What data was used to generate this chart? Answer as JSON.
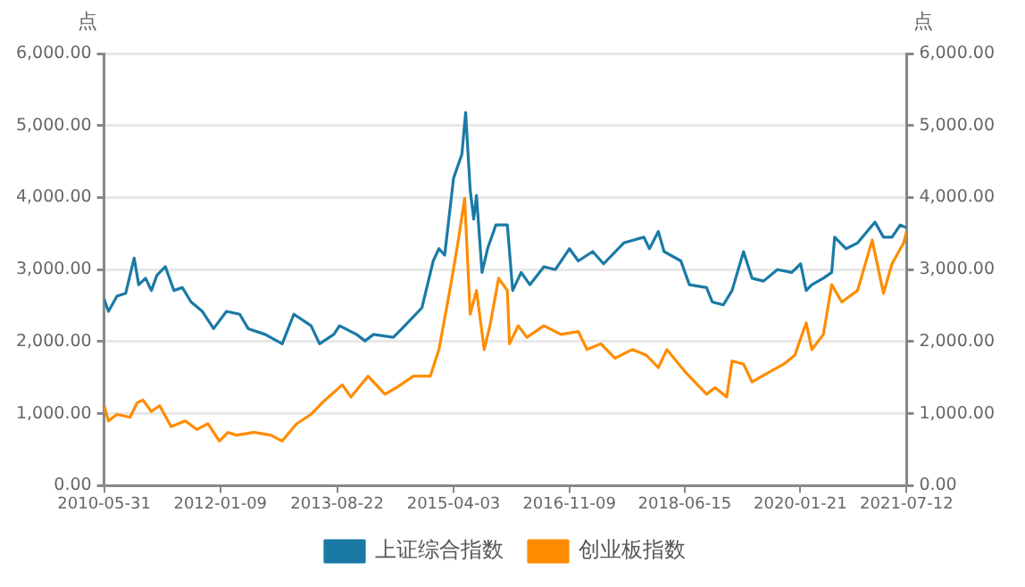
{
  "chart_data": {
    "type": "line",
    "ylabel": "点",
    "y2label": "点",
    "xlim": [
      "2010-05-31",
      "2021-07-12"
    ],
    "xticks": [
      "2010-05-31",
      "2012-01-09",
      "2013-08-22",
      "2015-04-03",
      "2016-11-09",
      "2018-06-15",
      "2020-01-21",
      "2021-07-12"
    ],
    "ylim": [
      0,
      6000
    ],
    "yticks": [
      {
        "value": 0,
        "label": "0.00"
      },
      {
        "value": 1000,
        "label": "1,000.00"
      },
      {
        "value": 2000,
        "label": "2,000.00"
      },
      {
        "value": 3000,
        "label": "3,000.00"
      },
      {
        "value": 4000,
        "label": "4,000.00"
      },
      {
        "value": 5000,
        "label": "5,000.00"
      },
      {
        "value": 6000,
        "label": "6,000.00"
      }
    ],
    "y2lim": [
      0,
      6000
    ],
    "y2ticks": [
      {
        "value": 0,
        "label": "0.00"
      },
      {
        "value": 1000,
        "label": "1,000.00"
      },
      {
        "value": 2000,
        "label": "2,000.00"
      },
      {
        "value": 3000,
        "label": "3,000.00"
      },
      {
        "value": 4000,
        "label": "4,000.00"
      },
      {
        "value": 5000,
        "label": "5,000.00"
      },
      {
        "value": 6000,
        "label": "6,000.00"
      }
    ],
    "grid": "y",
    "legend": "bottom",
    "marker": "none",
    "line_style": "solid",
    "series": [
      {
        "name": "上证综合指数",
        "color": "#1a7aa6",
        "x": [
          "2010-05-31",
          "2010-06-22",
          "2010-08-04",
          "2010-09-17",
          "2010-10-16",
          "2010-10-30",
          "2010-11-22",
          "2010-12-27",
          "2011-01-25",
          "2011-02-22",
          "2011-04-06",
          "2011-05-19",
          "2011-07-01",
          "2011-08-14",
          "2011-10-10",
          "2011-12-06",
          "2012-02-09",
          "2012-04-16",
          "2012-05-29",
          "2012-08-23",
          "2012-11-17",
          "2013-01-15",
          "2013-04-12",
          "2013-05-25",
          "2013-08-05",
          "2013-09-03",
          "2013-11-28",
          "2014-01-10",
          "2014-02-22",
          "2014-06-02",
          "2014-07-16",
          "2014-10-25",
          "2014-12-21",
          "2015-01-19",
          "2015-02-17",
          "2015-04-03",
          "2015-05-15",
          "2015-06-03",
          "2015-06-26",
          "2015-07-14",
          "2015-07-28",
          "2015-08-25",
          "2015-09-22",
          "2015-11-03",
          "2015-12-31",
          "2016-01-27",
          "2016-03-10",
          "2016-04-23",
          "2016-07-03",
          "2016-08-30",
          "2016-11-09",
          "2016-12-24",
          "2017-03-07",
          "2017-05-01",
          "2017-08-11",
          "2017-11-21",
          "2017-12-19",
          "2018-02-02",
          "2018-03-03",
          "2018-05-27",
          "2018-07-09",
          "2018-10-04",
          "2018-11-02",
          "2018-12-28",
          "2019-02-10",
          "2019-04-09",
          "2019-05-22",
          "2019-07-19",
          "2019-09-27",
          "2019-12-09",
          "2020-01-23",
          "2020-02-20",
          "2020-03-20",
          "2020-05-17",
          "2020-06-28",
          "2020-07-13",
          "2020-09-09",
          "2020-11-06",
          "2021-02-02",
          "2021-03-17",
          "2021-04-29",
          "2021-06-10",
          "2021-07-12"
        ],
        "values": [
          2590,
          2420,
          2630,
          2670,
          3000,
          3160,
          2790,
          2880,
          2710,
          2920,
          3040,
          2710,
          2750,
          2550,
          2420,
          2180,
          2420,
          2380,
          2180,
          2100,
          1970,
          2380,
          2220,
          1970,
          2100,
          2220,
          2100,
          2010,
          2100,
          2060,
          2180,
          2470,
          3120,
          3290,
          3200,
          4270,
          4600,
          5180,
          4110,
          3700,
          4030,
          2960,
          3290,
          3620,
          3620,
          2710,
          2960,
          2790,
          3040,
          3000,
          3290,
          3120,
          3250,
          3080,
          3370,
          3450,
          3290,
          3530,
          3250,
          3120,
          2790,
          2750,
          2550,
          2510,
          2710,
          3250,
          2880,
          2840,
          3000,
          2960,
          3080,
          2710,
          2790,
          2880,
          2960,
          3450,
          3290,
          3370,
          3660,
          3450,
          3450,
          3620,
          3580
        ]
      },
      {
        "name": "创业板指数",
        "color": "#ff8c00",
        "x": [
          "2010-05-31",
          "2010-06-22",
          "2010-08-04",
          "2010-10-09",
          "2010-11-14",
          "2010-12-13",
          "2011-01-25",
          "2011-03-08",
          "2011-05-05",
          "2011-07-16",
          "2011-09-12",
          "2011-11-07",
          "2012-01-04",
          "2012-02-17",
          "2012-04-01",
          "2012-06-27",
          "2012-09-21",
          "2012-11-17",
          "2013-01-29",
          "2013-04-12",
          "2013-06-07",
          "2013-09-17",
          "2013-10-31",
          "2014-01-25",
          "2014-04-21",
          "2014-06-17",
          "2014-09-12",
          "2014-12-06",
          "2015-01-19",
          "2015-03-15",
          "2015-04-25",
          "2015-05-29",
          "2015-06-26",
          "2015-07-28",
          "2015-09-05",
          "2015-10-04",
          "2015-11-17",
          "2015-12-31",
          "2016-01-11",
          "2016-02-24",
          "2016-04-08",
          "2016-07-03",
          "2016-09-27",
          "2016-12-24",
          "2017-02-06",
          "2017-04-17",
          "2017-06-28",
          "2017-09-23",
          "2017-12-04",
          "2018-02-02",
          "2018-03-17",
          "2018-06-24",
          "2018-10-04",
          "2018-11-16",
          "2019-01-14",
          "2019-02-10",
          "2019-04-09",
          "2019-05-22",
          "2019-08-07",
          "2019-10-31",
          "2019-12-24",
          "2020-02-20",
          "2020-03-20",
          "2020-05-17",
          "2020-06-28",
          "2020-08-18",
          "2020-11-06",
          "2021-01-19",
          "2021-03-17",
          "2021-04-29",
          "2021-06-27",
          "2021-07-12"
        ],
        "values": [
          1110,
          900,
          990,
          950,
          1150,
          1190,
          1030,
          1110,
          820,
          900,
          780,
          860,
          620,
          740,
          700,
          740,
          700,
          620,
          860,
          990,
          1150,
          1400,
          1230,
          1520,
          1270,
          1360,
          1520,
          1520,
          1890,
          2710,
          3370,
          3990,
          2380,
          2710,
          1890,
          2220,
          2880,
          2710,
          1970,
          2220,
          2060,
          2220,
          2100,
          2140,
          1890,
          1970,
          1770,
          1890,
          1810,
          1640,
          1890,
          1560,
          1270,
          1360,
          1230,
          1730,
          1690,
          1440,
          1560,
          1690,
          1810,
          2260,
          1890,
          2100,
          2790,
          2550,
          2710,
          3410,
          2670,
          3080,
          3370,
          3530
        ]
      }
    ]
  }
}
